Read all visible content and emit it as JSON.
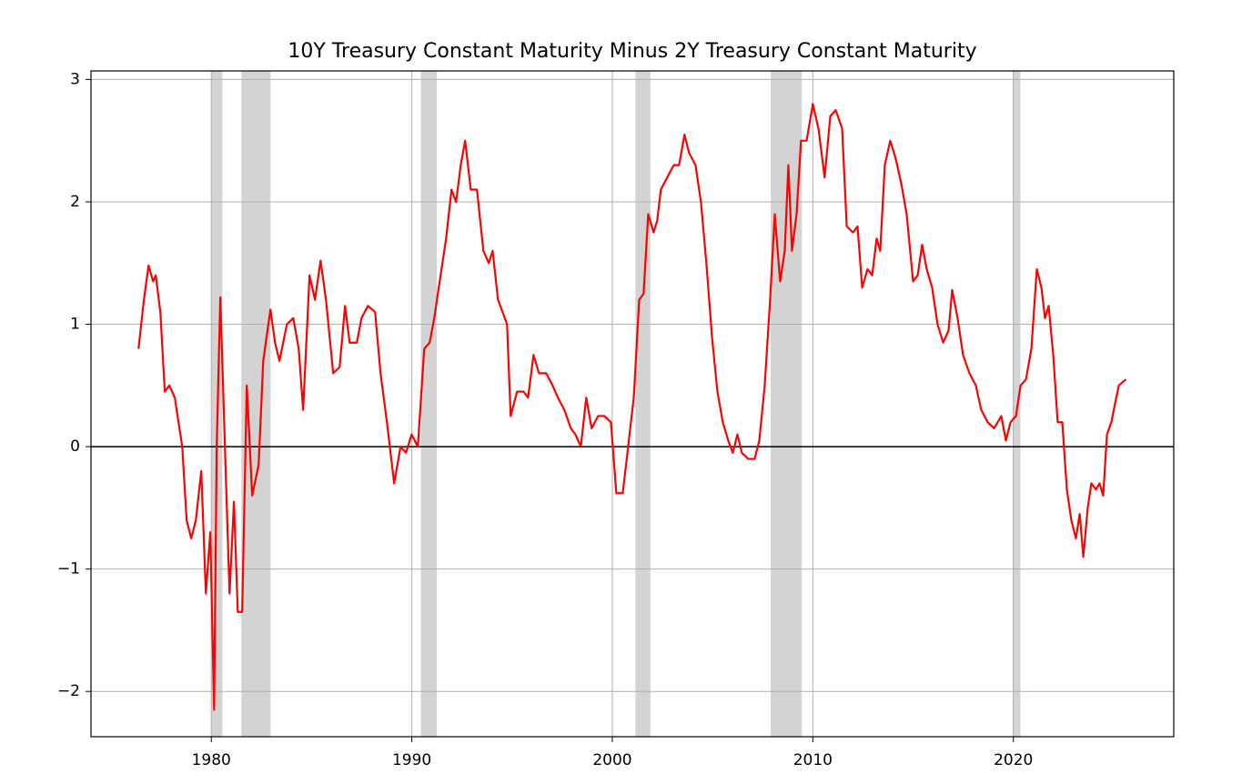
{
  "chart_data": {
    "type": "line",
    "title": "10Y Treasury Constant Maturity Minus 2Y Treasury Constant Maturity",
    "xlim": [
      1974,
      2028
    ],
    "ylim": [
      -2.37,
      3.07
    ],
    "xticks": [
      1980,
      1990,
      2000,
      2010,
      2020
    ],
    "yticks": [
      {
        "value": -2,
        "label": "−2"
      },
      {
        "value": -1,
        "label": "−1"
      },
      0,
      1,
      2,
      3
    ],
    "grid": true,
    "hline": 0,
    "hline_color": "#000000",
    "shade_color": "#d3d3d3",
    "shaded_regions": [
      [
        1980.0,
        1980.55
      ],
      [
        1981.5,
        1982.95
      ],
      [
        1990.45,
        1991.25
      ],
      [
        2001.15,
        2001.9
      ],
      [
        2007.9,
        2009.45
      ],
      [
        2019.97,
        2020.35
      ]
    ],
    "series": [
      {
        "color": "#ff0000",
        "x": [
          1976.37,
          1976.64,
          1976.87,
          1977.1,
          1977.23,
          1977.46,
          1977.68,
          1977.91,
          1978.18,
          1978.55,
          1978.77,
          1979.0,
          1979.23,
          1979.5,
          1979.73,
          1979.95,
          1980.14,
          1980.27,
          1980.45,
          1980.68,
          1980.91,
          1981.13,
          1981.32,
          1981.54,
          1981.77,
          1982.04,
          1982.36,
          1982.59,
          1982.95,
          1983.18,
          1983.4,
          1983.77,
          1984.09,
          1984.36,
          1984.58,
          1984.9,
          1985.17,
          1985.45,
          1985.72,
          1986.08,
          1986.4,
          1986.67,
          1986.9,
          1987.26,
          1987.49,
          1987.81,
          1988.17,
          1988.44,
          1988.76,
          1989.12,
          1989.44,
          1989.71,
          1989.99,
          1990.3,
          1990.62,
          1990.89,
          1991.12,
          1991.39,
          1991.71,
          1991.98,
          1992.21,
          1992.44,
          1992.66,
          1992.94,
          1993.25,
          1993.57,
          1993.84,
          1994.03,
          1994.3,
          1994.53,
          1994.75,
          1994.93,
          1995.25,
          1995.57,
          1995.8,
          1996.07,
          1996.34,
          1996.7,
          1997.02,
          1997.29,
          1997.61,
          1997.93,
          1998.16,
          1998.43,
          1998.7,
          1998.97,
          1999.29,
          1999.61,
          1999.93,
          2000.2,
          2000.52,
          2000.79,
          2001.07,
          2001.34,
          2001.56,
          2001.79,
          2002.06,
          2002.24,
          2002.42,
          2002.74,
          2003.06,
          2003.33,
          2003.6,
          2003.83,
          2004.15,
          2004.42,
          2004.69,
          2004.97,
          2005.24,
          2005.51,
          2005.78,
          2006.01,
          2006.24,
          2006.46,
          2006.78,
          2007.1,
          2007.33,
          2007.6,
          2007.87,
          2008.1,
          2008.37,
          2008.6,
          2008.78,
          2008.96,
          2009.19,
          2009.41,
          2009.69,
          2010.0,
          2010.28,
          2010.59,
          2010.87,
          2011.14,
          2011.46,
          2011.69,
          2012.0,
          2012.23,
          2012.46,
          2012.73,
          2012.96,
          2013.18,
          2013.36,
          2013.59,
          2013.86,
          2014.14,
          2014.41,
          2014.68,
          2015.0,
          2015.23,
          2015.45,
          2015.68,
          2015.95,
          2016.22,
          2016.5,
          2016.77,
          2016.95,
          2017.22,
          2017.49,
          2017.81,
          2018.13,
          2018.4,
          2018.72,
          2019.04,
          2019.4,
          2019.63,
          2019.86,
          2020.13,
          2020.36,
          2020.63,
          2020.9,
          2021.17,
          2021.4,
          2021.58,
          2021.76,
          2021.99,
          2022.21,
          2022.44,
          2022.67,
          2022.89,
          2023.12,
          2023.31,
          2023.49,
          2023.71,
          2023.89,
          2024.12,
          2024.3,
          2024.48,
          2024.67,
          2024.89,
          2025.07,
          2025.26,
          2025.62
        ],
        "values": [
          0.8,
          1.2,
          1.48,
          1.35,
          1.4,
          1.1,
          0.45,
          0.5,
          0.4,
          0.0,
          -0.6,
          -0.75,
          -0.6,
          -0.2,
          -1.2,
          -0.7,
          -2.15,
          0.0,
          1.22,
          0.0,
          -1.2,
          -0.45,
          -1.35,
          -1.35,
          0.5,
          -0.4,
          -0.15,
          0.7,
          1.12,
          0.85,
          0.7,
          1.0,
          1.05,
          0.8,
          0.3,
          1.4,
          1.2,
          1.52,
          1.2,
          0.6,
          0.65,
          1.15,
          0.85,
          0.85,
          1.05,
          1.15,
          1.1,
          0.6,
          0.2,
          -0.3,
          0.0,
          -0.05,
          0.1,
          0.0,
          0.8,
          0.85,
          1.05,
          1.35,
          1.7,
          2.1,
          2.0,
          2.3,
          2.5,
          2.1,
          2.1,
          1.6,
          1.5,
          1.6,
          1.2,
          1.1,
          1.0,
          0.25,
          0.45,
          0.45,
          0.4,
          0.75,
          0.6,
          0.6,
          0.5,
          0.4,
          0.3,
          0.15,
          0.1,
          0.0,
          0.4,
          0.15,
          0.25,
          0.25,
          0.2,
          -0.38,
          -0.38,
          0.0,
          0.4,
          1.2,
          1.25,
          1.9,
          1.75,
          1.85,
          2.1,
          2.2,
          2.3,
          2.3,
          2.55,
          2.4,
          2.3,
          2.0,
          1.5,
          0.9,
          0.45,
          0.2,
          0.05,
          -0.05,
          0.1,
          -0.05,
          -0.1,
          -0.1,
          0.05,
          0.5,
          1.2,
          1.9,
          1.35,
          1.6,
          2.3,
          1.6,
          1.9,
          2.5,
          2.5,
          2.8,
          2.6,
          2.2,
          2.7,
          2.75,
          2.6,
          1.8,
          1.75,
          1.8,
          1.3,
          1.45,
          1.4,
          1.7,
          1.6,
          2.3,
          2.5,
          2.35,
          2.15,
          1.9,
          1.35,
          1.4,
          1.65,
          1.45,
          1.3,
          1.0,
          0.85,
          0.95,
          1.28,
          1.05,
          0.75,
          0.6,
          0.5,
          0.3,
          0.2,
          0.15,
          0.25,
          0.05,
          0.2,
          0.25,
          0.5,
          0.55,
          0.8,
          1.45,
          1.3,
          1.05,
          1.15,
          0.75,
          0.2,
          0.2,
          -0.35,
          -0.6,
          -0.75,
          -0.55,
          -0.9,
          -0.5,
          -0.3,
          -0.35,
          -0.3,
          -0.4,
          0.1,
          0.2,
          0.35,
          0.5,
          0.55
        ]
      }
    ]
  }
}
